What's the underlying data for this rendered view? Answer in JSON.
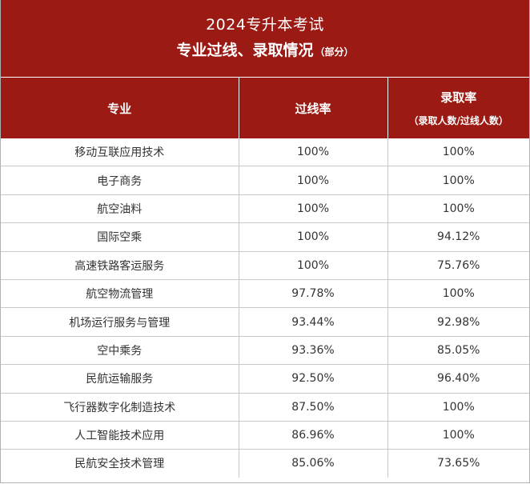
{
  "title": {
    "line1": "2024专升本考试",
    "line2": "专业过线、录取情况",
    "note": "（部分）"
  },
  "headers": {
    "major": "专业",
    "pass_rate": "过线率",
    "admit_rate": "录取率",
    "admit_rate_note": "（录取人数/过线人数）"
  },
  "rows": [
    {
      "major": "移动互联应用技术",
      "pass_rate": "100%",
      "admit_rate": "100%"
    },
    {
      "major": "电子商务",
      "pass_rate": "100%",
      "admit_rate": "100%"
    },
    {
      "major": "航空油料",
      "pass_rate": "100%",
      "admit_rate": "100%"
    },
    {
      "major": "国际空乘",
      "pass_rate": "100%",
      "admit_rate": "94.12%"
    },
    {
      "major": "高速铁路客运服务",
      "pass_rate": "100%",
      "admit_rate": "75.76%"
    },
    {
      "major": "航空物流管理",
      "pass_rate": "97.78%",
      "admit_rate": "100%"
    },
    {
      "major": "机场运行服务与管理",
      "pass_rate": "93.44%",
      "admit_rate": "92.98%"
    },
    {
      "major": "空中乘务",
      "pass_rate": "93.36%",
      "admit_rate": "85.05%"
    },
    {
      "major": "民航运输服务",
      "pass_rate": "92.50%",
      "admit_rate": "96.40%"
    },
    {
      "major": "飞行器数字化制造技术",
      "pass_rate": "87.50%",
      "admit_rate": "100%"
    },
    {
      "major": "人工智能技术应用",
      "pass_rate": "86.96%",
      "admit_rate": "100%"
    },
    {
      "major": "民航安全技术管理",
      "pass_rate": "85.06%",
      "admit_rate": "73.65%"
    }
  ],
  "colors": {
    "header_bg": "#9b1b14",
    "header_text": "#ffffff",
    "body_text": "#333333",
    "grid": "#c8c8c8"
  }
}
